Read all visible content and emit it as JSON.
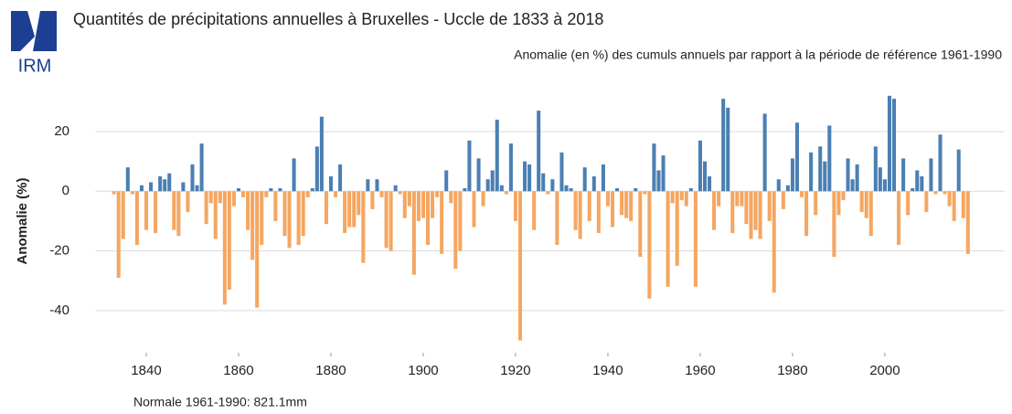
{
  "logo": "IRM",
  "chart_data": {
    "type": "bar",
    "title": "Quantités de précipitations annuelles à Bruxelles - Uccle de 1833 à 2018",
    "subtitle": "Anomalie (en %) des cumuls annuels par rapport à la période de référence 1961-1990",
    "ylabel": "Anomalie (%)",
    "footnote": "Normale 1961-1990: 821.1mm",
    "positive_color": "#4b7fb3",
    "negative_color": "#f5a661",
    "grid": true,
    "xlim": [
      1826,
      2022
    ],
    "xticks": [
      1840,
      1860,
      1880,
      1900,
      1920,
      1940,
      1960,
      1980,
      2000
    ],
    "ylim": [
      -52,
      35
    ],
    "yticks": [
      -40,
      -20,
      0,
      20
    ],
    "x": [
      1833,
      1834,
      1835,
      1836,
      1837,
      1838,
      1839,
      1840,
      1841,
      1842,
      1843,
      1844,
      1845,
      1846,
      1847,
      1848,
      1849,
      1850,
      1851,
      1852,
      1853,
      1854,
      1855,
      1856,
      1857,
      1858,
      1859,
      1860,
      1861,
      1862,
      1863,
      1864,
      1865,
      1866,
      1867,
      1868,
      1869,
      1870,
      1871,
      1872,
      1873,
      1874,
      1875,
      1876,
      1877,
      1878,
      1879,
      1880,
      1881,
      1882,
      1883,
      1884,
      1885,
      1886,
      1887,
      1888,
      1889,
      1890,
      1891,
      1892,
      1893,
      1894,
      1895,
      1896,
      1897,
      1898,
      1899,
      1900,
      1901,
      1902,
      1903,
      1904,
      1905,
      1906,
      1907,
      1908,
      1909,
      1910,
      1911,
      1912,
      1913,
      1914,
      1915,
      1916,
      1917,
      1918,
      1919,
      1920,
      1921,
      1922,
      1923,
      1924,
      1925,
      1926,
      1927,
      1928,
      1929,
      1930,
      1931,
      1932,
      1933,
      1934,
      1935,
      1936,
      1937,
      1938,
      1939,
      1940,
      1941,
      1942,
      1943,
      1944,
      1945,
      1946,
      1947,
      1948,
      1949,
      1950,
      1951,
      1952,
      1953,
      1954,
      1955,
      1956,
      1957,
      1958,
      1959,
      1960,
      1961,
      1962,
      1963,
      1964,
      1965,
      1966,
      1967,
      1968,
      1969,
      1970,
      1971,
      1972,
      1973,
      1974,
      1975,
      1976,
      1977,
      1978,
      1979,
      1980,
      1981,
      1982,
      1983,
      1984,
      1985,
      1986,
      1987,
      1988,
      1989,
      1990,
      1991,
      1992,
      1993,
      1994,
      1995,
      1996,
      1997,
      1998,
      1999,
      2000,
      2001,
      2002,
      2003,
      2004,
      2005,
      2006,
      2007,
      2008,
      2009,
      2010,
      2011,
      2012,
      2013,
      2014,
      2015,
      2016,
      2017,
      2018
    ],
    "values": [
      -1,
      -29,
      -16,
      8,
      -1,
      -18,
      2,
      -13,
      3,
      -14,
      5,
      4,
      6,
      -13,
      -15,
      3,
      -7,
      9,
      2,
      16,
      -11,
      -4,
      -16,
      -4,
      -38,
      -33,
      -5,
      1,
      -2,
      -13,
      -23,
      -39,
      -18,
      -2,
      1,
      -10,
      1,
      -15,
      -19,
      11,
      -18,
      -15,
      -2,
      1,
      15,
      25,
      -11,
      5,
      -2,
      9,
      -14,
      -12,
      -12,
      -8,
      -24,
      4,
      -6,
      4,
      -2,
      -19,
      -20,
      2,
      -1,
      -9,
      -5,
      -28,
      -10,
      -9,
      -18,
      -9,
      -2,
      -21,
      7,
      -4,
      -26,
      -20,
      1,
      17,
      -12,
      11,
      -5,
      4,
      7,
      24,
      2,
      -1,
      16,
      -10,
      -50,
      10,
      9,
      -13,
      27,
      6,
      -1,
      4,
      -18,
      13,
      2,
      1,
      -13,
      -16,
      8,
      -10,
      5,
      -14,
      9,
      -5,
      -12,
      1,
      -8,
      -9,
      -10,
      1,
      -22,
      -1,
      -36,
      16,
      7,
      12,
      -32,
      -4,
      -25,
      -3,
      -5,
      1,
      -32,
      17,
      10,
      5,
      -13,
      -5,
      31,
      28,
      -14,
      -5,
      -5,
      -11,
      -16,
      -13,
      -16,
      26,
      -10,
      -34,
      4,
      -6,
      2,
      11,
      23,
      -2,
      -15,
      13,
      -8,
      15,
      10,
      22,
      -22,
      -8,
      -3,
      11,
      4,
      9,
      -7,
      -9,
      -15,
      15,
      8,
      4,
      32,
      31,
      -18,
      11,
      -8,
      1,
      7,
      5,
      -7,
      11,
      -1,
      19,
      -1,
      -5,
      -10,
      14,
      -9,
      -21
    ]
  }
}
